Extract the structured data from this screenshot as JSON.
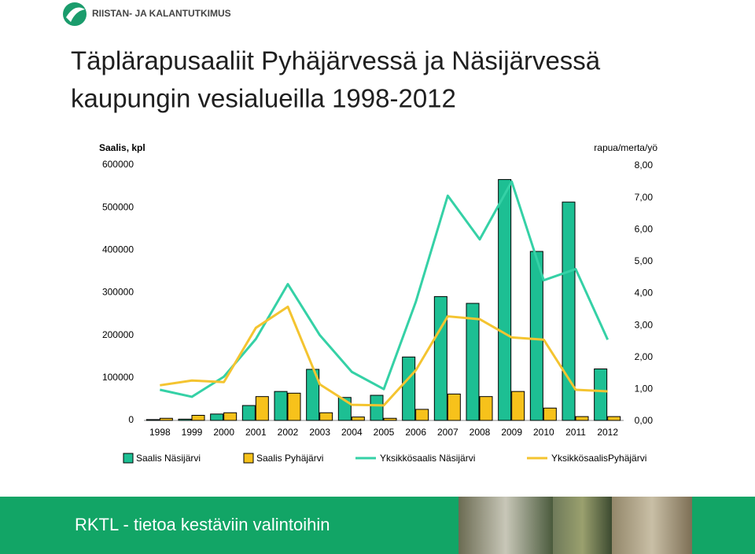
{
  "logo": "RIISTAN- JA KALANTUTKIMUS",
  "title": [
    "Täplärapusaaliit Pyhäjärvessä ja Näsijärvessä",
    "kaupungin vesialueilla 1998-2012"
  ],
  "chart_data": {
    "type": "combo",
    "y_label": "Saalis, kpl",
    "y2_label": "rapua/merta/yö",
    "categories": [
      "1998",
      "1999",
      "2000",
      "2001",
      "2002",
      "2003",
      "2004",
      "2005",
      "2006",
      "2007",
      "2008",
      "2009",
      "2010",
      "2011",
      "2012"
    ],
    "ylim": [
      0,
      600000
    ],
    "yticks": [
      0,
      100000,
      200000,
      300000,
      400000,
      500000,
      600000
    ],
    "y2lim": [
      0,
      8
    ],
    "y2ticks": [
      {
        "value": 0,
        "label": "0,00"
      },
      {
        "value": 1,
        "label": "1,00"
      },
      {
        "value": 2,
        "label": "2,00"
      },
      {
        "value": 3,
        "label": "3,00"
      },
      {
        "value": 4,
        "label": "4,00"
      },
      {
        "value": 5,
        "label": "5,00"
      },
      {
        "value": 6,
        "label": "6,00"
      },
      {
        "value": 7,
        "label": "7,00"
      },
      {
        "value": 8,
        "label": "8,00"
      }
    ],
    "series": [
      {
        "name": "Saalis Näsijärvi",
        "type": "bar",
        "color": "#1dbf93",
        "values": [
          2000,
          3000,
          15000,
          35000,
          68000,
          120000,
          54000,
          59000,
          149000,
          291000,
          275000,
          566000,
          397000,
          513000,
          121000
        ]
      },
      {
        "name": "Saalis Pyhäjärvi",
        "type": "bar",
        "color": "#f7c21b",
        "values": [
          5000,
          12000,
          18000,
          56000,
          64000,
          18000,
          8000,
          5000,
          26000,
          62000,
          56000,
          68000,
          29000,
          9000,
          9000
        ]
      },
      {
        "name": "Yksikkösaalis Näsijärvi",
        "type": "line",
        "axis": "y2",
        "color": "#35d1a6",
        "values": [
          0.96,
          0.74,
          1.37,
          2.55,
          4.27,
          2.67,
          1.52,
          0.98,
          3.71,
          7.04,
          5.67,
          7.48,
          4.39,
          4.74,
          2.53
        ]
      },
      {
        "name": "YksikkösaalisPyhäjärvi",
        "type": "line",
        "axis": "y2",
        "color": "#f4c430",
        "values": [
          1.1,
          1.25,
          1.2,
          2.9,
          3.56,
          1.13,
          0.49,
          0.47,
          1.57,
          3.26,
          3.17,
          2.6,
          2.53,
          0.96,
          0.91
        ]
      }
    ]
  },
  "footer": "RKTL - tietoa kestäviin valintoihin"
}
